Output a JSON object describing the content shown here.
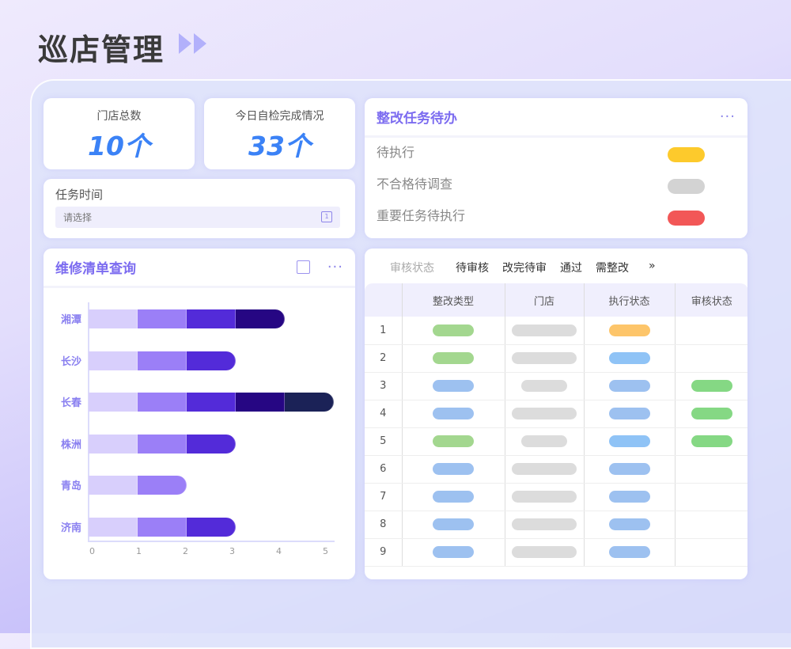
{
  "page": {
    "title": "巡店管理"
  },
  "stats": [
    {
      "label": "门店总数",
      "value": "10个"
    },
    {
      "label": "今日自检完成情况",
      "value": "33个"
    }
  ],
  "task_time": {
    "label": "任务时间",
    "placeholder": "请选择",
    "calendar_icon_text": "1"
  },
  "todo": {
    "title": "整改任务待办",
    "more": "···",
    "items": [
      {
        "label": "待执行",
        "color": "#fdca2c"
      },
      {
        "label": "不合格待调查",
        "color": "#d3d3d3"
      },
      {
        "label": "重要任务待执行",
        "color": "#f25757"
      }
    ]
  },
  "repair": {
    "title": "维修清单查询",
    "more": "···"
  },
  "chart_data": {
    "type": "bar",
    "orientation": "horizontal",
    "stacked": true,
    "categories": [
      "湘潭",
      "长沙",
      "长春",
      "株洲",
      "青岛",
      "济南"
    ],
    "totals": [
      4,
      3,
      5,
      3,
      2,
      3
    ],
    "segment_colors": [
      "#d8cffc",
      "#9b7ff7",
      "#532bd9",
      "#260683",
      "#1b2257"
    ],
    "xticks": [
      "0",
      "1",
      "2",
      "3",
      "4",
      "5"
    ],
    "xlim": [
      0,
      5
    ],
    "grid": false
  },
  "table": {
    "tabs": [
      "审核状态",
      "待审核",
      "改完待审",
      "通过",
      "需整改"
    ],
    "more_tabs": "»",
    "columns": [
      "",
      "整改类型",
      "门店",
      "执行状态",
      "审核状态"
    ],
    "rows": [
      {
        "n": "1",
        "type": "#a3d78f",
        "store": "long",
        "exec": "#fdc56a",
        "audit": null
      },
      {
        "n": "2",
        "type": "#a3d78f",
        "store": "long",
        "exec": "#8fc3f6",
        "audit": null
      },
      {
        "n": "3",
        "type": "#9dc1f0",
        "store": "short",
        "exec": "#9dc1f0",
        "audit": "#85d884"
      },
      {
        "n": "4",
        "type": "#9dc1f0",
        "store": "long",
        "exec": "#9dc1f0",
        "audit": "#85d884"
      },
      {
        "n": "5",
        "type": "#a3d78f",
        "store": "short",
        "exec": "#8fc3f6",
        "audit": "#85d884"
      },
      {
        "n": "6",
        "type": "#9dc1f0",
        "store": "long",
        "exec": "#9dc1f0",
        "audit": null
      },
      {
        "n": "7",
        "type": "#9dc1f0",
        "store": "long",
        "exec": "#9dc1f0",
        "audit": null
      },
      {
        "n": "8",
        "type": "#9dc1f0",
        "store": "long",
        "exec": "#9dc1f0",
        "audit": null
      },
      {
        "n": "9",
        "type": "#9dc1f0",
        "store": "long",
        "exec": "#9dc1f0",
        "audit": null
      }
    ]
  }
}
